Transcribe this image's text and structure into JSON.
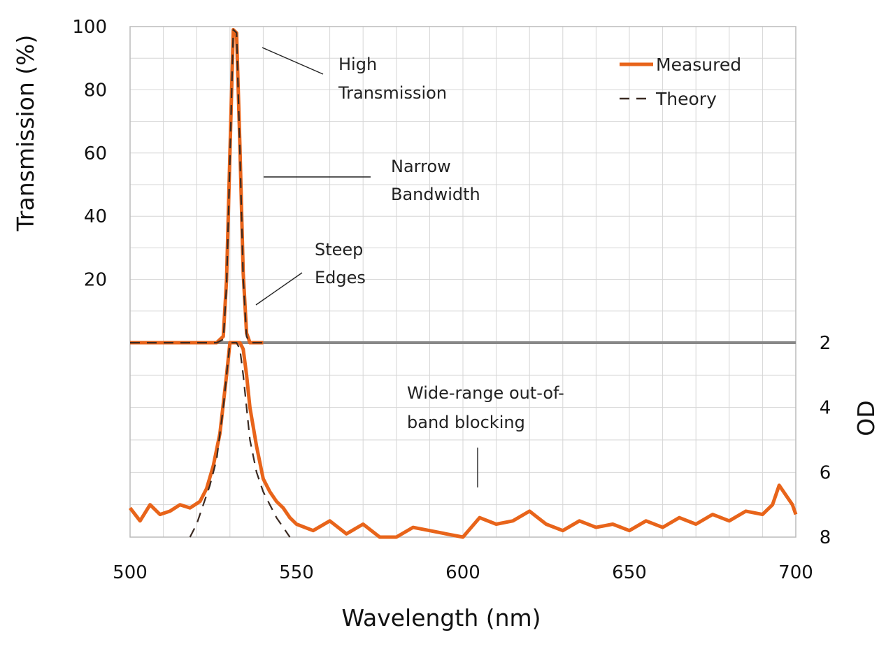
{
  "chart_data": {
    "type": "line",
    "title": "",
    "xlabel": "Wavelength (nm)",
    "ylabel_left": "Transmission (%)",
    "ylabel_right": "OD",
    "xlim": [
      500,
      700
    ],
    "ylim_transmission": [
      0,
      100
    ],
    "ylim_od": [
      2,
      8
    ],
    "od_axis_inverted": true,
    "x_ticks": [
      "500",
      "550",
      "600",
      "650",
      "700"
    ],
    "y_ticks_transmission": [
      "100",
      "80",
      "60",
      "40",
      "20"
    ],
    "y_ticks_od": [
      "2",
      "4",
      "6",
      "8"
    ],
    "grid": true,
    "legend_position": "top-right",
    "colors": {
      "measured": "#e8641a",
      "theory": "#3a2a22",
      "grid": "#d6d6d6",
      "divider": "#888888"
    },
    "series": [
      {
        "name": "Measured",
        "style": "solid",
        "transmission_x": [
          500,
          526,
          528,
          529,
          530,
          531,
          532,
          533,
          534,
          535,
          536,
          538,
          540
        ],
        "transmission_y": [
          0,
          0,
          2,
          20,
          60,
          99,
          98,
          62,
          22,
          3,
          0,
          0,
          0
        ],
        "od_x": [
          500,
          503,
          506,
          509,
          512,
          515,
          518,
          521,
          523,
          525,
          527,
          529,
          530,
          531,
          532,
          533,
          534,
          535,
          536,
          538,
          540,
          542,
          544,
          546,
          548,
          550,
          555,
          560,
          565,
          570,
          575,
          580,
          585,
          590,
          595,
          600,
          605,
          610,
          615,
          620,
          625,
          630,
          635,
          640,
          645,
          650,
          655,
          660,
          665,
          670,
          675,
          680,
          685,
          690,
          693,
          695,
          697,
          699,
          700
        ],
        "od_y": [
          7.1,
          7.5,
          7.0,
          7.3,
          7.2,
          7.0,
          7.1,
          6.9,
          6.5,
          5.8,
          4.8,
          3.0,
          2.0,
          2.0,
          2.0,
          2.0,
          2.2,
          3.0,
          4.0,
          5.2,
          6.2,
          6.6,
          6.9,
          7.1,
          7.4,
          7.6,
          7.8,
          7.5,
          7.9,
          7.6,
          8.0,
          8.0,
          7.7,
          7.8,
          7.9,
          8.0,
          7.4,
          7.6,
          7.5,
          7.2,
          7.6,
          7.8,
          7.5,
          7.7,
          7.6,
          7.8,
          7.5,
          7.7,
          7.4,
          7.6,
          7.3,
          7.5,
          7.2,
          7.3,
          7.0,
          6.4,
          6.7,
          7.0,
          7.3
        ]
      },
      {
        "name": "Theory",
        "style": "dashed",
        "transmission_x": [
          500,
          526,
          528,
          529,
          530,
          531,
          532,
          533,
          534,
          535,
          536,
          538,
          540
        ],
        "transmission_y": [
          0,
          0,
          1,
          18,
          58,
          99,
          98,
          60,
          20,
          2,
          0,
          0,
          0
        ],
        "od_x": [
          518,
          520,
          522,
          524,
          526,
          528,
          529,
          530,
          532,
          533,
          534,
          535,
          536,
          538,
          540,
          542,
          544,
          546,
          548
        ],
        "od_y": [
          8.0,
          7.6,
          7.0,
          6.4,
          5.6,
          4.0,
          3.0,
          2.0,
          2.0,
          2.2,
          3.0,
          4.0,
          5.0,
          6.0,
          6.6,
          7.0,
          7.4,
          7.7,
          8.0
        ]
      }
    ],
    "annotations": [
      {
        "lines": [
          "High",
          "Transmission"
        ]
      },
      {
        "lines": [
          "Narrow",
          "Bandwidth"
        ]
      },
      {
        "lines": [
          "Steep",
          "Edges"
        ]
      },
      {
        "lines": [
          "Wide-range out-of-",
          "band blocking"
        ]
      }
    ]
  }
}
